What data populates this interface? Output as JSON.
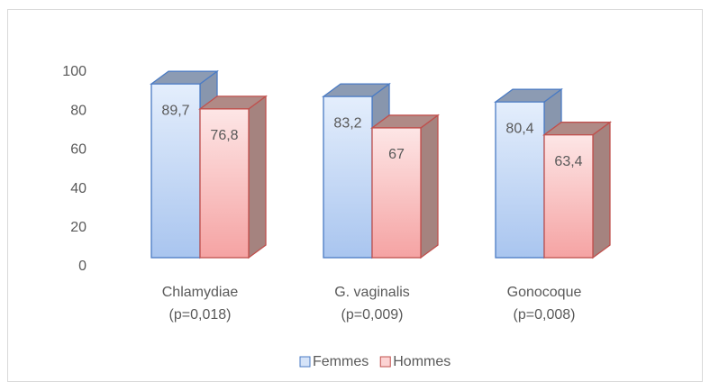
{
  "chart_data": {
    "type": "bar3d",
    "categories": [
      [
        "Chlamydiae",
        "(p=0,018)"
      ],
      [
        "G. vaginalis",
        "(p=0,009)"
      ],
      [
        "Gonocoque",
        "(p=0,008)"
      ]
    ],
    "series": [
      {
        "name": "Femmes",
        "color": "#4a7bc4",
        "values": [
          89.7,
          83.2,
          80.4
        ],
        "value_labels": [
          "89,7",
          "83,2",
          "80,4"
        ]
      },
      {
        "name": "Hommes",
        "color": "#c0504d",
        "values": [
          76.8,
          67,
          63.4
        ],
        "value_labels": [
          "76,8",
          "67",
          "63,4"
        ]
      }
    ],
    "ylim": [
      0,
      100
    ],
    "yticks": [
      0,
      20,
      40,
      60,
      80,
      100
    ],
    "legend": "bottom"
  }
}
